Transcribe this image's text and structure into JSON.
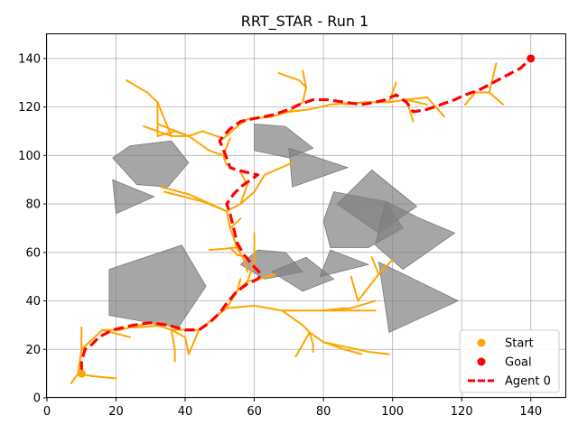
{
  "chart_data": {
    "type": "line",
    "title": "RRT_STAR - Run 1",
    "xlabel": "",
    "ylabel": "",
    "xlim": [
      0,
      150
    ],
    "ylim": [
      0,
      150
    ],
    "xticks": [
      0,
      20,
      40,
      60,
      80,
      100,
      120,
      140
    ],
    "yticks": [
      0,
      20,
      40,
      60,
      80,
      100,
      120,
      140
    ],
    "grid": true,
    "legend_position": "lower-right",
    "colors": {
      "tree": "#FFA500",
      "path": "#FF0000",
      "start": "#FFA500",
      "goal": "#FF0000",
      "obstacle": "#808080"
    },
    "obstacles": [
      [
        [
          19,
          99
        ],
        [
          24,
          104
        ],
        [
          36,
          106
        ],
        [
          41,
          97
        ],
        [
          35,
          87
        ],
        [
          26,
          88
        ]
      ],
      [
        [
          19,
          90
        ],
        [
          31,
          83
        ],
        [
          20,
          76
        ]
      ],
      [
        [
          18,
          53
        ],
        [
          39,
          63
        ],
        [
          46,
          46
        ],
        [
          38,
          29
        ],
        [
          18,
          34
        ]
      ],
      [
        [
          60,
          113
        ],
        [
          69,
          112
        ],
        [
          77,
          103
        ],
        [
          70,
          99
        ],
        [
          60,
          102
        ]
      ],
      [
        [
          70,
          103
        ],
        [
          87,
          95
        ],
        [
          71,
          87
        ]
      ],
      [
        [
          61,
          61
        ],
        [
          69,
          60
        ],
        [
          74,
          52
        ],
        [
          63,
          49
        ],
        [
          56,
          55
        ]
      ],
      [
        [
          65,
          52
        ],
        [
          75,
          58
        ],
        [
          83,
          49
        ],
        [
          74,
          44
        ]
      ],
      [
        [
          82,
          61
        ],
        [
          93,
          55
        ],
        [
          79,
          50
        ]
      ],
      [
        [
          83,
          85
        ],
        [
          98,
          81
        ],
        [
          103,
          70
        ],
        [
          93,
          62
        ],
        [
          82,
          62
        ],
        [
          80,
          73
        ]
      ],
      [
        [
          84,
          80
        ],
        [
          94,
          94
        ],
        [
          107,
          79
        ],
        [
          96,
          68
        ]
      ],
      [
        [
          98,
          81
        ],
        [
          108,
          74
        ],
        [
          118,
          68
        ],
        [
          103,
          53
        ],
        [
          95,
          63
        ]
      ],
      [
        [
          96,
          56
        ],
        [
          119,
          40
        ],
        [
          99,
          27
        ]
      ]
    ],
    "series": [
      {
        "name": "Agent 0",
        "style": "dashed",
        "x": [
          10,
          10,
          11,
          13,
          15,
          19,
          25,
          30,
          35,
          40,
          44,
          47,
          50,
          52,
          55,
          58,
          61,
          62,
          60,
          57,
          55,
          54,
          53,
          52,
          54,
          56,
          59,
          61,
          58,
          55,
          53,
          52,
          50,
          51,
          53,
          56,
          59,
          63,
          66,
          70,
          73,
          77,
          81,
          86,
          91,
          95,
          98,
          101,
          104,
          106,
          110,
          114,
          118,
          121,
          125,
          129,
          133,
          137,
          140
        ],
        "y": [
          11,
          15,
          20,
          22,
          25,
          28,
          30,
          31,
          30,
          28,
          28,
          31,
          35,
          39,
          44,
          47,
          49,
          51,
          54,
          59,
          64,
          70,
          76,
          80,
          84,
          87,
          90,
          92,
          93,
          94,
          95,
          99,
          106,
          108,
          111,
          114,
          115,
          116,
          117,
          119,
          121,
          123,
          123,
          122,
          121,
          122,
          123,
          125,
          122,
          118,
          119,
          121,
          123,
          125,
          127,
          130,
          133,
          136,
          140
        ]
      }
    ],
    "tree_edges": [
      [
        [
          9,
          10
        ],
        [
          13,
          9
        ]
      ],
      [
        [
          13,
          9
        ],
        [
          20,
          8
        ]
      ],
      [
        [
          9,
          10
        ],
        [
          7,
          6
        ]
      ],
      [
        [
          9,
          10
        ],
        [
          10,
          20
        ]
      ],
      [
        [
          10,
          20
        ],
        [
          10,
          29
        ]
      ],
      [
        [
          10,
          20
        ],
        [
          16,
          28
        ]
      ],
      [
        [
          16,
          28
        ],
        [
          24,
          25
        ]
      ],
      [
        [
          16,
          28
        ],
        [
          21,
          28
        ]
      ],
      [
        [
          21,
          28
        ],
        [
          30,
          31
        ]
      ],
      [
        [
          30,
          31
        ],
        [
          36,
          28
        ]
      ],
      [
        [
          36,
          28
        ],
        [
          37,
          20
        ]
      ],
      [
        [
          37,
          20
        ],
        [
          37,
          15
        ]
      ],
      [
        [
          36,
          28
        ],
        [
          40,
          25
        ]
      ],
      [
        [
          40,
          25
        ],
        [
          41,
          18
        ]
      ],
      [
        [
          36,
          28
        ],
        [
          44,
          28
        ]
      ],
      [
        [
          44,
          28
        ],
        [
          52,
          37
        ]
      ],
      [
        [
          52,
          37
        ],
        [
          60,
          38
        ]
      ],
      [
        [
          60,
          38
        ],
        [
          68,
          36
        ]
      ],
      [
        [
          68,
          36
        ],
        [
          74,
          30
        ]
      ],
      [
        [
          74,
          30
        ],
        [
          76,
          27
        ]
      ],
      [
        [
          76,
          27
        ],
        [
          77,
          22
        ]
      ],
      [
        [
          77,
          22
        ],
        [
          77,
          19
        ]
      ],
      [
        [
          76,
          27
        ],
        [
          72,
          17
        ]
      ],
      [
        [
          76,
          27
        ],
        [
          80,
          23
        ]
      ],
      [
        [
          80,
          23
        ],
        [
          86,
          20
        ]
      ],
      [
        [
          86,
          20
        ],
        [
          91,
          18
        ]
      ],
      [
        [
          80,
          23
        ],
        [
          93,
          19
        ]
      ],
      [
        [
          93,
          19
        ],
        [
          99,
          18
        ]
      ],
      [
        [
          68,
          36
        ],
        [
          80,
          36
        ]
      ],
      [
        [
          80,
          36
        ],
        [
          88,
          37
        ]
      ],
      [
        [
          88,
          37
        ],
        [
          95,
          40
        ]
      ],
      [
        [
          80,
          36
        ],
        [
          90,
          36
        ]
      ],
      [
        [
          90,
          36
        ],
        [
          95,
          36
        ]
      ],
      [
        [
          80,
          36
        ],
        [
          86,
          37
        ]
      ],
      [
        [
          52,
          37
        ],
        [
          55,
          44
        ]
      ],
      [
        [
          55,
          44
        ],
        [
          58,
          48
        ]
      ],
      [
        [
          58,
          48
        ],
        [
          61,
          49
        ]
      ],
      [
        [
          58,
          48
        ],
        [
          60,
          56
        ]
      ],
      [
        [
          60,
          56
        ],
        [
          60,
          68
        ]
      ],
      [
        [
          55,
          44
        ],
        [
          56,
          49
        ]
      ],
      [
        [
          61,
          49
        ],
        [
          66,
          51
        ]
      ],
      [
        [
          53,
          62
        ],
        [
          55,
          59
        ]
      ],
      [
        [
          55,
          59
        ],
        [
          58,
          58
        ]
      ],
      [
        [
          47,
          61
        ],
        [
          55,
          62
        ]
      ],
      [
        [
          55,
          62
        ],
        [
          57,
          57
        ]
      ],
      [
        [
          57,
          57
        ],
        [
          58,
          52
        ]
      ],
      [
        [
          55,
          62
        ],
        [
          53,
          70
        ]
      ],
      [
        [
          53,
          70
        ],
        [
          56,
          74
        ]
      ],
      [
        [
          53,
          70
        ],
        [
          52,
          77
        ]
      ],
      [
        [
          52,
          77
        ],
        [
          41,
          84
        ]
      ],
      [
        [
          41,
          84
        ],
        [
          33,
          87
        ]
      ],
      [
        [
          52,
          77
        ],
        [
          45,
          81
        ]
      ],
      [
        [
          45,
          81
        ],
        [
          34,
          85
        ]
      ],
      [
        [
          52,
          77
        ],
        [
          56,
          80
        ]
      ],
      [
        [
          56,
          80
        ],
        [
          60,
          85
        ]
      ],
      [
        [
          60,
          85
        ],
        [
          63,
          92
        ]
      ],
      [
        [
          63,
          92
        ],
        [
          71,
          97
        ]
      ],
      [
        [
          56,
          80
        ],
        [
          58,
          88
        ]
      ],
      [
        [
          58,
          88
        ],
        [
          56,
          93
        ]
      ],
      [
        [
          52,
          96
        ],
        [
          51,
          100
        ]
      ],
      [
        [
          51,
          100
        ],
        [
          47,
          102
        ]
      ],
      [
        [
          51,
          100
        ],
        [
          53,
          107
        ]
      ],
      [
        [
          47,
          102
        ],
        [
          41,
          108
        ]
      ],
      [
        [
          41,
          108
        ],
        [
          37,
          110
        ]
      ],
      [
        [
          37,
          110
        ],
        [
          32,
          108
        ]
      ],
      [
        [
          41,
          108
        ],
        [
          36,
          108
        ]
      ],
      [
        [
          36,
          108
        ],
        [
          28,
          112
        ]
      ],
      [
        [
          41,
          108
        ],
        [
          45,
          110
        ]
      ],
      [
        [
          45,
          110
        ],
        [
          51,
          107
        ]
      ],
      [
        [
          32,
          108
        ],
        [
          32,
          115
        ]
      ],
      [
        [
          32,
          115
        ],
        [
          32,
          122
        ]
      ],
      [
        [
          32,
          122
        ],
        [
          29,
          126
        ]
      ],
      [
        [
          29,
          126
        ],
        [
          23,
          131
        ]
      ],
      [
        [
          32,
          122
        ],
        [
          36,
          108
        ]
      ],
      [
        [
          41,
          108
        ],
        [
          32,
          113
        ]
      ],
      [
        [
          51,
          107
        ],
        [
          56,
          113
        ]
      ],
      [
        [
          56,
          113
        ],
        [
          58,
          115
        ]
      ],
      [
        [
          58,
          115
        ],
        [
          65,
          116
        ]
      ],
      [
        [
          65,
          116
        ],
        [
          70,
          118
        ]
      ],
      [
        [
          70,
          118
        ],
        [
          76,
          119
        ]
      ],
      [
        [
          76,
          119
        ],
        [
          82,
          121
        ]
      ],
      [
        [
          82,
          121
        ],
        [
          92,
          122
        ]
      ],
      [
        [
          92,
          122
        ],
        [
          99,
          122
        ]
      ],
      [
        [
          99,
          122
        ],
        [
          104,
          123
        ]
      ],
      [
        [
          104,
          123
        ],
        [
          110,
          124
        ]
      ],
      [
        [
          110,
          124
        ],
        [
          115,
          116
        ]
      ],
      [
        [
          104,
          123
        ],
        [
          106,
          114
        ]
      ],
      [
        [
          104,
          123
        ],
        [
          110,
          121
        ]
      ],
      [
        [
          70,
          118
        ],
        [
          74,
          122
        ]
      ],
      [
        [
          74,
          122
        ],
        [
          75,
          128
        ]
      ],
      [
        [
          75,
          128
        ],
        [
          73,
          131
        ]
      ],
      [
        [
          73,
          131
        ],
        [
          67,
          134
        ]
      ],
      [
        [
          75,
          128
        ],
        [
          74,
          135
        ]
      ],
      [
        [
          99,
          122
        ],
        [
          101,
          130
        ]
      ],
      [
        [
          121,
          121
        ],
        [
          124,
          126
        ]
      ],
      [
        [
          124,
          126
        ],
        [
          128,
          126
        ]
      ],
      [
        [
          128,
          126
        ],
        [
          132,
          121
        ]
      ],
      [
        [
          128,
          126
        ],
        [
          130,
          138
        ]
      ],
      [
        [
          86,
          121
        ],
        [
          92,
          122
        ]
      ],
      [
        [
          90,
          40
        ],
        [
          96,
          51
        ]
      ],
      [
        [
          90,
          40
        ],
        [
          88,
          50
        ]
      ],
      [
        [
          96,
          51
        ],
        [
          100,
          57
        ]
      ],
      [
        [
          96,
          51
        ],
        [
          94,
          58
        ]
      ],
      [
        [
          44,
          28
        ],
        [
          41,
          18
        ]
      ],
      [
        [
          25,
          29
        ],
        [
          35,
          30
        ]
      ]
    ],
    "legend": [
      {
        "label": "Start",
        "marker": "circle",
        "color": "#FFA500"
      },
      {
        "label": "Goal",
        "marker": "circle",
        "color": "#FF0000"
      },
      {
        "label": "Agent 0",
        "marker": "dashed-line",
        "color": "#FF0000"
      }
    ],
    "start": {
      "x": 10,
      "y": 10
    },
    "goal": {
      "x": 140,
      "y": 140
    }
  }
}
